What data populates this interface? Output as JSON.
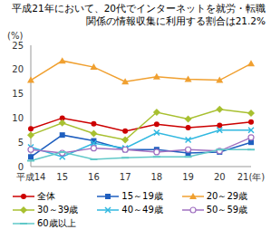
{
  "chart_data": {
    "type": "line",
    "title": "平成21年において、20代でインターネットを就労・転職関係の情報収集に利用する割合は21.2%",
    "ylabel": "(%)",
    "categories": [
      "平成14",
      "15",
      "16",
      "17",
      "18",
      "19",
      "20",
      "21(年)"
    ],
    "ylim": [
      0,
      25
    ],
    "yticks": [
      0,
      5,
      10,
      15,
      20,
      25
    ],
    "grid": false,
    "series": [
      {
        "name": "全体",
        "color": "#cc0000",
        "marker": "circle",
        "values": [
          7.8,
          10,
          8.8,
          7.3,
          8.7,
          8,
          8.5,
          9.2
        ]
      },
      {
        "name": "15～19歳",
        "color": "#1f5fbf",
        "marker": "square",
        "values": [
          2,
          6.5,
          5.3,
          3.5,
          3.5,
          2.8,
          3,
          5
        ]
      },
      {
        "name": "20～29歳",
        "color": "#f0a030",
        "marker": "triangle",
        "values": [
          17.8,
          21.8,
          20.5,
          17.5,
          18.5,
          18,
          17.8,
          21.2
        ]
      },
      {
        "name": "30～39歳",
        "color": "#a8c030",
        "marker": "diamond",
        "values": [
          6.5,
          9,
          6.8,
          5.5,
          11.2,
          9.8,
          11.8,
          11
        ]
      },
      {
        "name": "40～49歳",
        "color": "#30b8e0",
        "marker": "x",
        "values": [
          4,
          2,
          4.8,
          3.8,
          7,
          5.5,
          7.5,
          7.5
        ]
      },
      {
        "name": "50～59歳",
        "color": "#a070c0",
        "marker": "circle-open",
        "values": [
          3.5,
          2.8,
          3.8,
          3.5,
          3,
          3.5,
          3.2,
          6
        ]
      },
      {
        "name": "60歳以上",
        "color": "#60c8c8",
        "marker": "dash",
        "values": [
          1.2,
          3,
          1.5,
          1.8,
          2,
          2,
          3.5,
          3.5
        ]
      }
    ]
  }
}
